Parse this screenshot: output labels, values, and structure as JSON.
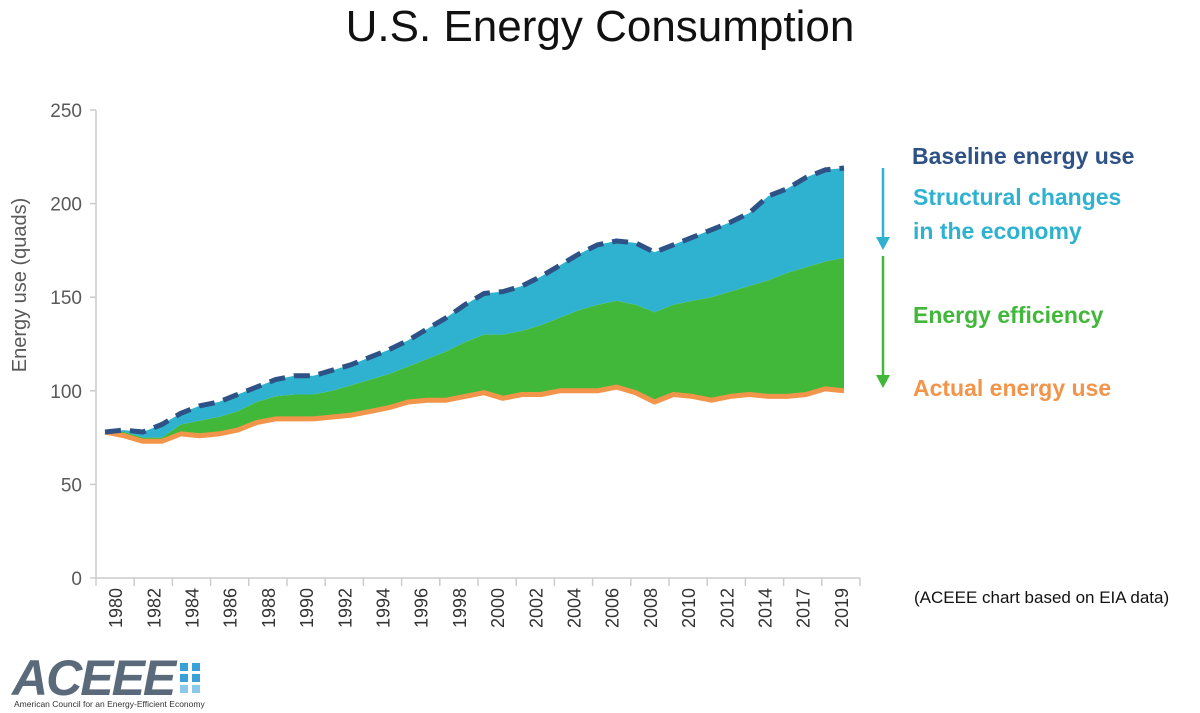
{
  "title": "U.S. Energy Consumption",
  "source_note": "(ACEEE chart based on EIA data)",
  "logo": {
    "wordmark": "ACEEE",
    "tagline": "American Council for an Energy-Efficient Economy"
  },
  "colors": {
    "baseline": "#2e5186",
    "structural": "#2fb2d0",
    "efficiency": "#42b83a",
    "actual": "#f2954a",
    "axis": "#cccccc",
    "text": "#595959"
  },
  "legend": {
    "baseline": "Baseline energy use",
    "structural_line1": "Structural changes",
    "structural_line2": "in the economy",
    "efficiency": "Energy efficiency",
    "actual": "Actual energy use"
  },
  "chart_data": {
    "type": "area",
    "title": "U.S. Energy Consumption",
    "xlabel": "",
    "ylabel": "Energy use (quads)",
    "ylim": [
      0,
      250
    ],
    "yticks": [
      0,
      50,
      100,
      150,
      200,
      250
    ],
    "xticks": [
      "1980",
      "1982",
      "1984",
      "1986",
      "1988",
      "1990",
      "1992",
      "1994",
      "1996",
      "1998",
      "2000",
      "2002",
      "2004",
      "2006",
      "2008",
      "2010",
      "2012",
      "2014",
      "2017",
      "2019"
    ],
    "x": [
      1980,
      1981,
      1982,
      1983,
      1984,
      1985,
      1986,
      1987,
      1988,
      1989,
      1990,
      1991,
      1992,
      1993,
      1994,
      1995,
      1996,
      1997,
      1998,
      1999,
      2000,
      2001,
      2002,
      2003,
      2004,
      2005,
      2006,
      2007,
      2008,
      2009,
      2010,
      2011,
      2012,
      2013,
      2014,
      2015,
      2016,
      2017,
      2018,
      2019
    ],
    "grid": false,
    "legend_position": "right",
    "series": [
      {
        "name": "Baseline energy use",
        "values": [
          78,
          79,
          78,
          82,
          88,
          92,
          94,
          98,
          102,
          106,
          108,
          108,
          111,
          114,
          118,
          122,
          127,
          133,
          139,
          146,
          152,
          153,
          156,
          161,
          167,
          173,
          178,
          180,
          179,
          174,
          178,
          182,
          186,
          190,
          195,
          204,
          208,
          214,
          218,
          219
        ]
      },
      {
        "name": "Energy efficiency",
        "values": [
          78,
          78,
          75,
          75,
          82,
          84,
          86,
          89,
          94,
          97,
          98,
          98,
          100,
          103,
          106,
          109,
          113,
          117,
          121,
          126,
          130,
          130,
          132,
          135,
          139,
          143,
          146,
          148,
          146,
          142,
          146,
          148,
          150,
          153,
          156,
          159,
          163,
          166,
          169,
          171
        ]
      },
      {
        "name": "Actual energy use",
        "values": [
          78,
          76,
          73,
          73,
          77,
          76,
          77,
          79,
          83,
          85,
          85,
          85,
          86,
          87,
          89,
          91,
          94,
          95,
          95,
          97,
          99,
          96,
          98,
          98,
          100,
          100,
          100,
          102,
          99,
          94,
          98,
          97,
          95,
          97,
          98,
          97,
          97,
          98,
          101,
          100
        ]
      }
    ]
  }
}
